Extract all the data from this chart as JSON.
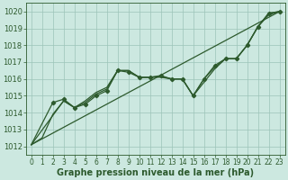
{
  "background_color": "#cce8e0",
  "plot_bg_color": "#cce8e0",
  "line_color": "#2d5a2d",
  "grid_color": "#9cc4b8",
  "xlabel": "Graphe pression niveau de la mer (hPa)",
  "xlabel_fontsize": 7,
  "tick_fontsize": 6,
  "xlim": [
    -0.5,
    23.5
  ],
  "ylim": [
    1011.5,
    1020.5
  ],
  "yticks": [
    1012,
    1013,
    1014,
    1015,
    1016,
    1017,
    1018,
    1019,
    1020
  ],
  "xticks": [
    0,
    1,
    2,
    3,
    4,
    5,
    6,
    7,
    8,
    9,
    10,
    11,
    12,
    13,
    14,
    15,
    16,
    17,
    18,
    19,
    20,
    21,
    22,
    23
  ],
  "trend_x": [
    0,
    23
  ],
  "trend_y": [
    1012.1,
    1020.0
  ],
  "series1_x": [
    0,
    1,
    2,
    3,
    4,
    5,
    6,
    7,
    8,
    9,
    10,
    11,
    12,
    13,
    14,
    15,
    16,
    17,
    18,
    19,
    20,
    21,
    22,
    23
  ],
  "series1_y": [
    1012.1,
    1012.5,
    1013.9,
    1014.7,
    1014.3,
    1014.7,
    1015.2,
    1015.5,
    1016.5,
    1016.5,
    1016.1,
    1016.1,
    1016.1,
    1016.0,
    1016.0,
    1015.0,
    1015.8,
    1016.6,
    1017.2,
    1017.2,
    1018.0,
    1019.1,
    1019.8,
    1020.0
  ],
  "series2_x": [
    0,
    2,
    3,
    4,
    5,
    6,
    7,
    8,
    9,
    10,
    11,
    12,
    13,
    14,
    15,
    16,
    17,
    18,
    19,
    20,
    21,
    22,
    23
  ],
  "series2_y": [
    1012.1,
    1014.6,
    1014.8,
    1014.3,
    1014.5,
    1015.0,
    1015.3,
    1016.5,
    1016.4,
    1016.1,
    1016.1,
    1016.2,
    1016.0,
    1016.0,
    1015.0,
    1016.0,
    1016.8,
    1017.2,
    1017.2,
    1018.0,
    1019.1,
    1019.9,
    1020.0
  ],
  "series3_x": [
    0,
    3,
    4,
    5,
    6,
    7,
    8,
    9,
    10,
    11,
    12,
    13,
    14,
    15,
    16,
    17,
    18,
    19,
    20,
    21,
    22,
    23
  ],
  "series3_y": [
    1012.1,
    1014.7,
    1014.3,
    1014.6,
    1015.1,
    1015.4,
    1016.5,
    1016.5,
    1016.1,
    1016.1,
    1016.15,
    1016.0,
    1016.0,
    1015.0,
    1016.0,
    1016.7,
    1017.2,
    1017.2,
    1018.0,
    1019.1,
    1019.9,
    1020.0
  ],
  "markers_x": [
    2,
    3,
    4,
    5,
    6,
    7,
    8,
    9,
    10,
    11,
    12,
    13,
    14,
    15,
    16,
    17,
    18,
    19,
    20,
    21,
    22,
    23
  ],
  "markers_y": [
    1014.6,
    1014.8,
    1014.3,
    1014.5,
    1015.0,
    1015.3,
    1016.5,
    1016.4,
    1016.1,
    1016.1,
    1016.2,
    1016.0,
    1016.0,
    1015.0,
    1016.0,
    1016.8,
    1017.2,
    1017.2,
    1018.0,
    1019.1,
    1019.9,
    1020.0
  ]
}
